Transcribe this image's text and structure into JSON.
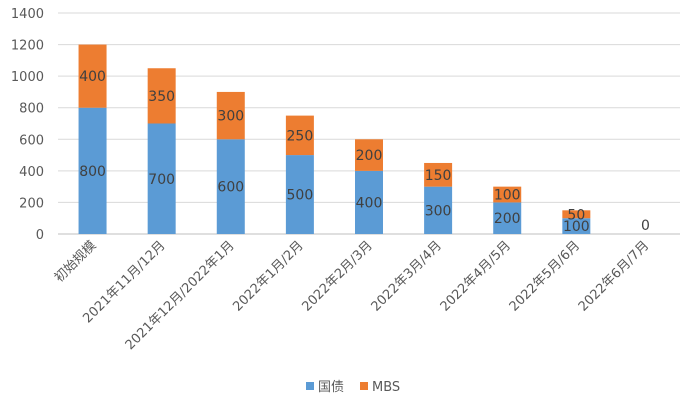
{
  "chart_data": {
    "type": "bar",
    "stacked": true,
    "categories": [
      "初始规模",
      "2021年11月/12月",
      "2021年12月/2022年1月",
      "2022年1月/2月",
      "2022年2月/3月",
      "2022年3月/4月",
      "2022年4月/5月",
      "2022年5月/6月",
      "2022年6月/7月"
    ],
    "series": [
      {
        "name": "国债",
        "values": [
          800,
          700,
          600,
          500,
          400,
          300,
          200,
          100,
          0
        ],
        "color": "#5b9bd5"
      },
      {
        "name": "MBS",
        "values": [
          400,
          350,
          300,
          250,
          200,
          150,
          100,
          50,
          0
        ],
        "color": "#ed7d31"
      }
    ],
    "ylim": [
      0,
      1400
    ],
    "yticks": [
      0,
      200,
      400,
      600,
      800,
      1000,
      1200,
      1400
    ],
    "grid": true,
    "legend": "bottom",
    "title": "",
    "xlabel": "",
    "ylabel": ""
  }
}
